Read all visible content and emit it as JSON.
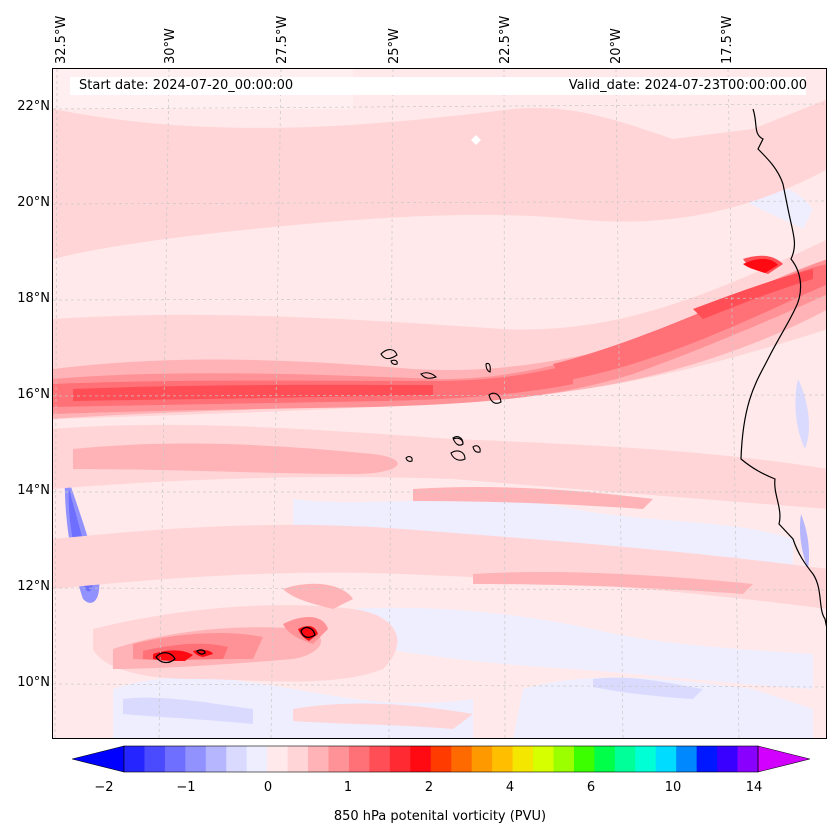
{
  "map": {
    "start_date": "Start date: 2024-07-20_00:00:00",
    "valid_date": "Valid_date: 2024-07-23T00:00:00.00",
    "lon_labels": [
      "32.5°W",
      "30°W",
      "27.5°W",
      "25°W",
      "22.5°W",
      "20°W",
      "17.5°W"
    ],
    "lat_labels": [
      "22°N",
      "20°N",
      "18°N",
      "16°N",
      "14°N",
      "12°N",
      "10°N"
    ],
    "extent": {
      "lon_min": -33.0,
      "lon_max": -15.5,
      "lat_min": 8.9,
      "lat_max": 22.8
    },
    "field": "850 hPa potential vorticity",
    "gridlines": true
  },
  "colorbar": {
    "label": "850 hPa potenital vorticity (PVU)",
    "tick_labels": [
      "−2",
      "−1",
      "0",
      "1",
      "2",
      "4",
      "6",
      "10",
      "14"
    ],
    "colors": [
      "#0000ff",
      "#2525ff",
      "#4a4aff",
      "#6e6eff",
      "#9292ff",
      "#b6b6ff",
      "#dadaff",
      "#eeeeff",
      "#ffe9ea",
      "#ffd5d7",
      "#ffb3b6",
      "#ff9296",
      "#ff7077",
      "#ff4e55",
      "#ff2a32",
      "#ff0a13",
      "#ff3b00",
      "#ff6a00",
      "#ff9900",
      "#ffbf00",
      "#f5e600",
      "#d6ff00",
      "#9bff00",
      "#3cff00",
      "#00ff49",
      "#00ff99",
      "#00ffd5",
      "#00dcff",
      "#0088ff",
      "#0018ff",
      "#3a00ff",
      "#8a00ff",
      "#d200ff"
    ],
    "extend": "both"
  }
}
